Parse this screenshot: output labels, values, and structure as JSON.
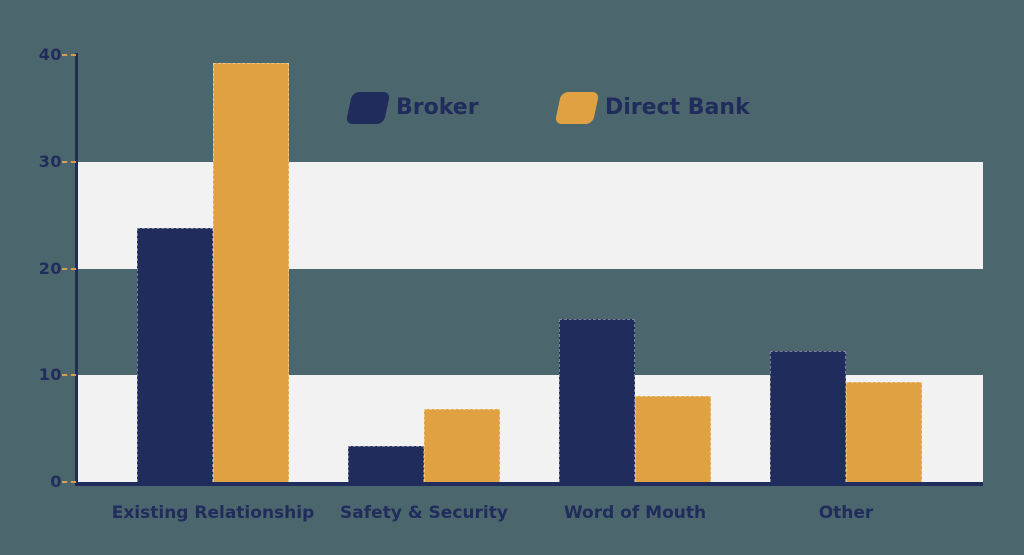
{
  "colors": {
    "background": "#4c666d",
    "navy": "#1f2c5c",
    "orange": "#dfa142",
    "band": "#f2f2f3",
    "tick_dash": "#d89a4e",
    "label_text": "#222d58"
  },
  "chart_data": {
    "type": "bar",
    "title": "",
    "categories": [
      "Existing Relationship",
      "Safety & Security",
      "Word of Mouth",
      "Other"
    ],
    "series": [
      {
        "name": "Broker",
        "color": "#1f2c5c",
        "values": [
          23.8,
          3.4,
          15.3,
          12.3
        ]
      },
      {
        "name": "Direct Bank",
        "color": "#dfa142",
        "values": [
          39.3,
          6.8,
          8.1,
          9.4
        ]
      }
    ],
    "yticks": [
      0,
      10,
      20,
      30,
      40
    ],
    "ylim": [
      0,
      40
    ],
    "xlabel": "",
    "ylabel": "",
    "legend_position": "top-center",
    "grid": "alternating horizontal light bands",
    "bands": [
      [
        20,
        30
      ],
      [
        0,
        10
      ]
    ]
  }
}
